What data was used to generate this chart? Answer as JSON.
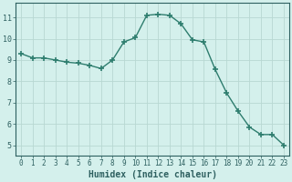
{
  "x": [
    0,
    1,
    2,
    3,
    4,
    5,
    6,
    7,
    8,
    9,
    10,
    11,
    12,
    13,
    14,
    15,
    16,
    17,
    18,
    19,
    20,
    21,
    22,
    23
  ],
  "y": [
    9.3,
    9.1,
    9.1,
    9.0,
    8.9,
    8.85,
    8.75,
    8.6,
    9.0,
    9.85,
    10.05,
    11.1,
    11.15,
    11.1,
    10.7,
    9.95,
    9.85,
    8.55,
    7.45,
    6.6,
    5.85,
    5.5,
    5.5,
    5.0
  ],
  "line_color": "#2e7d6e",
  "marker": "+",
  "marker_size": 4,
  "bg_color": "#d4f0ec",
  "grid_color": "#b8d8d2",
  "xlabel": "Humidex (Indice chaleur)",
  "xlim": [
    -0.5,
    23.5
  ],
  "ylim": [
    4.5,
    11.7
  ],
  "yticks": [
    5,
    6,
    7,
    8,
    9,
    10,
    11
  ],
  "xticks": [
    0,
    1,
    2,
    3,
    4,
    5,
    6,
    7,
    8,
    9,
    10,
    11,
    12,
    13,
    14,
    15,
    16,
    17,
    18,
    19,
    20,
    21,
    22,
    23
  ],
  "font_color": "#2e6060",
  "axis_bg": "#d4f0ec",
  "xlabel_fontsize": 7,
  "tick_fontsize": 5.5
}
